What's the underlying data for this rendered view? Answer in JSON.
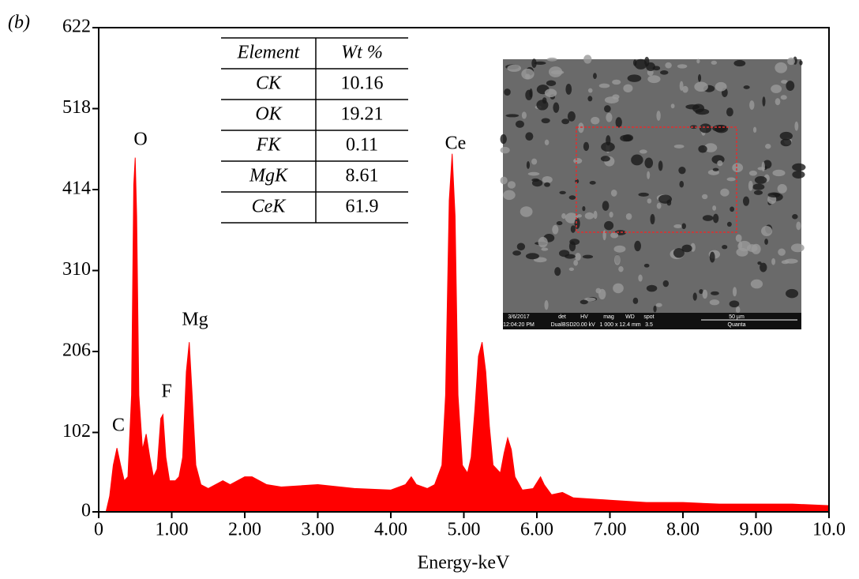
{
  "chart_data": {
    "type": "area",
    "panel_label": "(b)",
    "xlabel": "Energy-keV",
    "color": "#ff0000",
    "x": [
      0.1,
      0.15,
      0.2,
      0.25,
      0.3,
      0.35,
      0.4,
      0.45,
      0.48,
      0.5,
      0.52,
      0.55,
      0.6,
      0.65,
      0.7,
      0.75,
      0.8,
      0.85,
      0.88,
      0.92,
      0.97,
      1.05,
      1.1,
      1.15,
      1.2,
      1.24,
      1.28,
      1.33,
      1.4,
      1.5,
      1.7,
      1.8,
      2.0,
      2.1,
      2.3,
      2.5,
      3.0,
      3.5,
      4.0,
      4.2,
      4.28,
      4.35,
      4.5,
      4.6,
      4.7,
      4.75,
      4.8,
      4.84,
      4.88,
      4.92,
      4.98,
      5.05,
      5.1,
      5.15,
      5.2,
      5.25,
      5.3,
      5.35,
      5.4,
      5.5,
      5.55,
      5.6,
      5.65,
      5.7,
      5.8,
      5.95,
      6.05,
      6.1,
      6.2,
      6.35,
      6.5,
      7.0,
      7.5,
      8.0,
      8.5,
      9.0,
      9.5,
      10.0
    ],
    "values": [
      0,
      20,
      60,
      82,
      60,
      40,
      45,
      150,
      420,
      455,
      380,
      150,
      80,
      100,
      70,
      45,
      55,
      120,
      125,
      70,
      40,
      40,
      45,
      70,
      180,
      218,
      150,
      60,
      35,
      30,
      40,
      35,
      45,
      45,
      35,
      32,
      35,
      30,
      28,
      35,
      45,
      35,
      30,
      35,
      60,
      150,
      400,
      460,
      380,
      150,
      60,
      50,
      70,
      130,
      200,
      218,
      180,
      110,
      60,
      50,
      75,
      95,
      80,
      45,
      28,
      30,
      45,
      35,
      22,
      25,
      18,
      15,
      12,
      12,
      10,
      10,
      10,
      8
    ],
    "xlim": [
      0,
      10
    ],
    "ylim": [
      0,
      622
    ],
    "xticks": [
      0,
      {
        "value": 1,
        "label": "1.00"
      },
      {
        "value": 2,
        "label": "2.00"
      },
      {
        "value": 3,
        "label": "3.00"
      },
      {
        "value": 4,
        "label": "4.00"
      },
      {
        "value": 5,
        "label": "5.00"
      },
      {
        "value": 6,
        "label": "6.00"
      },
      {
        "value": 7,
        "label": "7.00"
      },
      {
        "value": 8,
        "label": "8.00"
      },
      {
        "value": 9,
        "label": "9.00"
      },
      {
        "value": 10,
        "label": "10.0"
      }
    ],
    "yticks": [
      0,
      102,
      206,
      310,
      414,
      518,
      622
    ],
    "peak_labels": [
      "C",
      "O",
      "F",
      "Mg",
      "Ce"
    ],
    "table": {
      "columns": [
        "Element",
        "Wt %"
      ],
      "rows": [
        [
          "CK",
          10.16
        ],
        [
          "OK",
          19.21
        ],
        [
          "FK",
          0.11
        ],
        [
          "MgK",
          8.61
        ],
        [
          "CeK",
          61.9
        ]
      ]
    },
    "inset_info": [
      "3/6/2017",
      "12:04:20 PM",
      "det",
      "DualBSD",
      "HV",
      "20.00 kV",
      "mag",
      "1 000 x",
      "WD",
      "12.4 mm",
      "spot",
      "3.5",
      "50 µm",
      "Quanta"
    ]
  }
}
